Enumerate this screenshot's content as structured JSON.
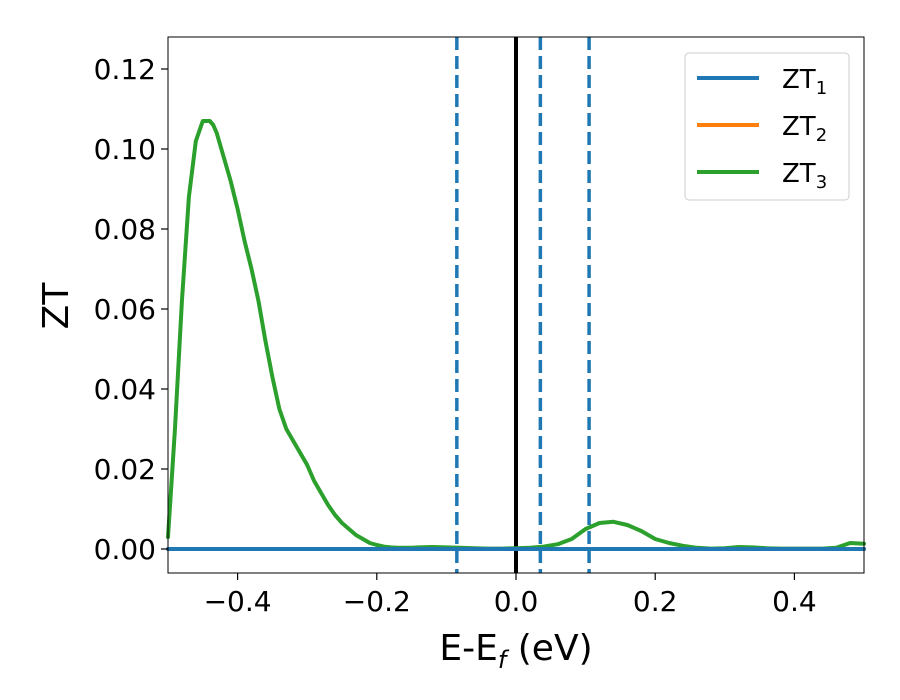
{
  "chart_data": {
    "type": "line",
    "xlabel": "E-E",
    "xlabel_sub": "f",
    "xlabel_unit": " (eV)",
    "ylabel": "ZT",
    "xlim": [
      -0.5,
      0.5
    ],
    "ylim": [
      -0.006,
      0.128
    ],
    "xticks": [
      -0.4,
      -0.2,
      0.0,
      0.2,
      0.4
    ],
    "xtick_labels": [
      "−0.4",
      "−0.2",
      "0.0",
      "0.2",
      "0.4"
    ],
    "yticks": [
      0.0,
      0.02,
      0.04,
      0.06,
      0.08,
      0.1,
      0.12
    ],
    "ytick_labels": [
      "0.00",
      "0.02",
      "0.04",
      "0.06",
      "0.08",
      "0.10",
      "0.12"
    ],
    "grid": false,
    "legend_position": "top-right",
    "series": [
      {
        "name": "ZT",
        "name_sub": "1",
        "color": "#1f77b4",
        "x": [
          -0.5,
          0.5
        ],
        "y": [
          0.0,
          0.0
        ]
      },
      {
        "name": "ZT",
        "name_sub": "2",
        "color": "#ff7f0e",
        "x": [
          -0.5,
          0.5
        ],
        "y": [
          0.0,
          0.0
        ]
      },
      {
        "name": "ZT",
        "name_sub": "3",
        "color": "#2ca02c",
        "x": [
          -0.5,
          -0.49,
          -0.48,
          -0.47,
          -0.46,
          -0.45,
          -0.44,
          -0.435,
          -0.43,
          -0.42,
          -0.41,
          -0.4,
          -0.39,
          -0.38,
          -0.37,
          -0.36,
          -0.35,
          -0.34,
          -0.33,
          -0.32,
          -0.31,
          -0.3,
          -0.29,
          -0.28,
          -0.27,
          -0.26,
          -0.25,
          -0.24,
          -0.23,
          -0.22,
          -0.21,
          -0.2,
          -0.19,
          -0.18,
          -0.17,
          -0.16,
          -0.15,
          -0.14,
          -0.12,
          -0.1,
          -0.08,
          -0.06,
          -0.04,
          -0.02,
          0.0,
          0.02,
          0.04,
          0.06,
          0.08,
          0.1,
          0.12,
          0.14,
          0.16,
          0.18,
          0.2,
          0.22,
          0.24,
          0.26,
          0.28,
          0.3,
          0.32,
          0.34,
          0.36,
          0.38,
          0.4,
          0.42,
          0.44,
          0.46,
          0.48,
          0.5
        ],
        "y": [
          0.003,
          0.03,
          0.062,
          0.088,
          0.102,
          0.107,
          0.107,
          0.106,
          0.104,
          0.098,
          0.092,
          0.085,
          0.077,
          0.07,
          0.062,
          0.052,
          0.043,
          0.035,
          0.03,
          0.027,
          0.024,
          0.021,
          0.017,
          0.014,
          0.011,
          0.0085,
          0.0065,
          0.005,
          0.0035,
          0.0025,
          0.0015,
          0.001,
          0.0006,
          0.0004,
          0.0003,
          0.0003,
          0.0003,
          0.0004,
          0.0005,
          0.0004,
          0.0003,
          0.0002,
          0.0001,
          0.0001,
          0.0002,
          0.0003,
          0.0006,
          0.0012,
          0.0025,
          0.005,
          0.0065,
          0.0068,
          0.006,
          0.0045,
          0.0025,
          0.0015,
          0.0008,
          0.0003,
          0.0001,
          0.0002,
          0.0005,
          0.0004,
          0.0002,
          0.0001,
          0.0001,
          0.0001,
          0.0001,
          0.0003,
          0.0015,
          0.0013
        ]
      }
    ],
    "vlines": [
      {
        "x": -0.085,
        "style": "dashed",
        "color": "#1f77b4"
      },
      {
        "x": 0.0,
        "style": "solid",
        "color": "#000000"
      },
      {
        "x": 0.035,
        "style": "dashed",
        "color": "#1f77b4"
      },
      {
        "x": 0.105,
        "style": "dashed",
        "color": "#1f77b4"
      }
    ]
  }
}
